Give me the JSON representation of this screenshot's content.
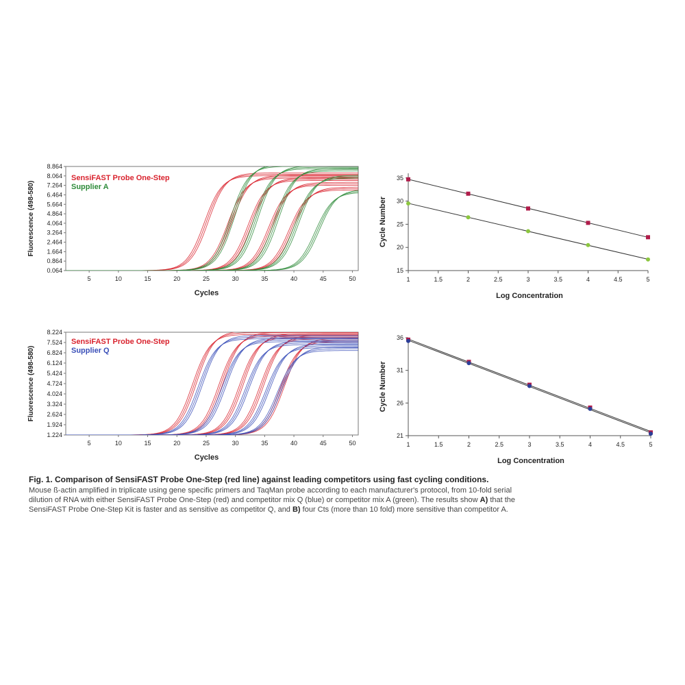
{
  "chart_data": [
    {
      "id": "amp1",
      "type": "line",
      "xlabel": "Cycles",
      "ylabel": "Fluorescence (498-580)",
      "x_ticks": [
        5,
        10,
        15,
        20,
        25,
        30,
        35,
        40,
        45,
        50
      ],
      "xlim": [
        1,
        51
      ],
      "y_ticks": [
        "0.064",
        "0.864",
        "1.664",
        "2.464",
        "3.264",
        "4.064",
        "4.864",
        "5.664",
        "6.464",
        "7.264",
        "8.064",
        "8.864"
      ],
      "ylim": [
        0.064,
        8.864
      ],
      "legend_position": "top-left",
      "series": [
        {
          "name": "SensiFAST Probe One-Step",
          "color": "#d9232e",
          "baseline": 0.064,
          "replicates": 3,
          "curves": [
            {
              "ct": 25.0,
              "plateau": 8.2
            },
            {
              "ct": 29.0,
              "plateau": 8.0
            },
            {
              "ct": 32.5,
              "plateau": 7.8
            },
            {
              "ct": 36.0,
              "plateau": 7.4
            },
            {
              "ct": 39.5,
              "plateau": 7.0
            }
          ]
        },
        {
          "name": "Supplier A",
          "color": "#2e8b3a",
          "baseline": 0.064,
          "replicates": 3,
          "curves": [
            {
              "ct": 29.5,
              "plateau": 9.0
            },
            {
              "ct": 33.5,
              "plateau": 8.8
            },
            {
              "ct": 37.0,
              "plateau": 8.6
            },
            {
              "ct": 40.5,
              "plateau": 8.0
            },
            {
              "ct": 44.0,
              "plateau": 6.8
            }
          ]
        }
      ]
    },
    {
      "id": "std1",
      "type": "scatter",
      "xlabel": "Log Concentration",
      "ylabel": "Cycle Number",
      "x_ticks": [
        "1",
        "1.5",
        "2",
        "2.5",
        "3",
        "3.5",
        "4",
        "4.5",
        "5"
      ],
      "xlim": [
        1,
        5
      ],
      "y_ticks": [
        "15",
        "20",
        "25",
        "30",
        "35"
      ],
      "ylim": [
        15,
        36
      ],
      "series": [
        {
          "name": "SensiFAST Probe One-Step",
          "color": "#b01c4a",
          "marker": "square",
          "x": [
            1,
            2,
            3,
            4,
            5
          ],
          "y": [
            34.7,
            31.6,
            28.4,
            25.3,
            22.2
          ]
        },
        {
          "name": "Supplier A",
          "color": "#8cc63f",
          "marker": "circle",
          "x": [
            1,
            2,
            3,
            4,
            5
          ],
          "y": [
            29.5,
            26.5,
            23.5,
            20.5,
            17.4
          ]
        }
      ]
    },
    {
      "id": "amp2",
      "type": "line",
      "xlabel": "Cycles",
      "ylabel": "Fluorescence (498-580)",
      "x_ticks": [
        5,
        10,
        15,
        20,
        25,
        30,
        35,
        40,
        45,
        50
      ],
      "xlim": [
        1,
        51
      ],
      "y_ticks": [
        "1.224",
        "1.924",
        "2.624",
        "3.324",
        "4.024",
        "4.724",
        "5.424",
        "6.124",
        "6.824",
        "7.524",
        "8.224"
      ],
      "ylim": [
        1.224,
        8.224
      ],
      "legend_position": "top-left",
      "series": [
        {
          "name": "SensiFAST Probe One-Step",
          "color": "#d9232e",
          "baseline": 1.224,
          "replicates": 3,
          "curves": [
            {
              "ct": 23.0,
              "plateau": 8.2
            },
            {
              "ct": 27.5,
              "plateau": 8.1
            },
            {
              "ct": 31.0,
              "plateau": 8.0
            },
            {
              "ct": 34.5,
              "plateau": 7.9
            },
            {
              "ct": 38.0,
              "plateau": 7.7
            }
          ]
        },
        {
          "name": "Supplier Q",
          "color": "#3a4fb8",
          "baseline": 1.224,
          "replicates": 3,
          "curves": [
            {
              "ct": 24.0,
              "plateau": 7.9
            },
            {
              "ct": 28.0,
              "plateau": 7.7
            },
            {
              "ct": 32.0,
              "plateau": 7.5
            },
            {
              "ct": 35.5,
              "plateau": 7.3
            },
            {
              "ct": 37.5,
              "plateau": 7.1
            }
          ]
        }
      ]
    },
    {
      "id": "std2",
      "type": "scatter",
      "xlabel": "Log Concentration",
      "ylabel": "Cycle Number",
      "x_ticks": [
        "1",
        "1.5",
        "2",
        "2.5",
        "3",
        "3.5",
        "4",
        "4.5",
        "5"
      ],
      "xlim": [
        1,
        5
      ],
      "y_ticks": [
        "21",
        "26",
        "31",
        "36"
      ],
      "ylim": [
        21,
        36
      ],
      "series": [
        {
          "name": "SensiFAST Probe One-Step",
          "color": "#b01c4a",
          "marker": "square",
          "x": [
            1,
            2,
            3,
            4,
            5
          ],
          "y": [
            35.7,
            32.3,
            28.8,
            25.3,
            21.5
          ]
        },
        {
          "name": "Supplier Q",
          "color": "#2b3f99",
          "marker": "circle",
          "x": [
            1,
            2,
            3,
            4,
            5
          ],
          "y": [
            35.5,
            32.1,
            28.6,
            25.1,
            21.3
          ]
        }
      ]
    }
  ],
  "caption": {
    "title": "Fig. 1. Comparison of SensiFAST Probe One-Step (red line) against leading competitors using fast cycling conditions.",
    "body_1": "Mouse ß-actin amplified in triplicate using gene specific primers and TaqMan probe according to each manufacturer's protocol, from 10-fold serial dilution of RNA with either SensiFAST Probe One-Step (red) and competitor mix Q (blue) or competitor mix A (green). The results show ",
    "label_a": "A)",
    "body_2": " that the SensiFAST Probe One-Step Kit is faster and as sensitive as competitor Q, and ",
    "label_b": "B)",
    "body_3": " four Cts (more than 10 fold) more sensitive than competitor A."
  }
}
